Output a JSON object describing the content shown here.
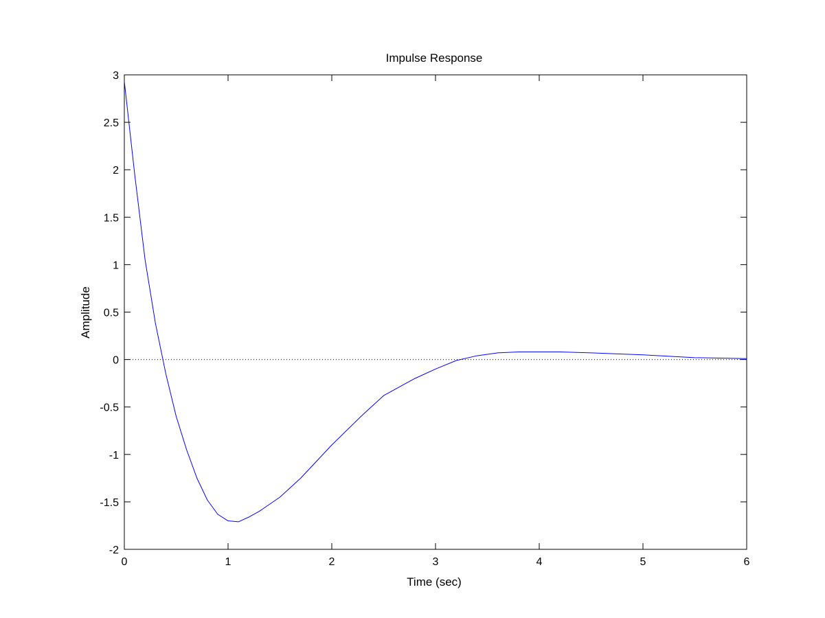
{
  "chart_data": {
    "type": "line",
    "title": "Impulse Response",
    "xlabel": "Time (sec)",
    "ylabel": "Amplitude",
    "xlim": [
      0,
      6
    ],
    "ylim": [
      -2,
      3
    ],
    "xticks": [
      0,
      1,
      2,
      3,
      4,
      5,
      6
    ],
    "yticks": [
      -2,
      -1.5,
      -1,
      -0.5,
      0,
      0.5,
      1,
      1.5,
      2,
      2.5,
      3
    ],
    "xtick_labels": [
      "0",
      "1",
      "2",
      "3",
      "4",
      "5",
      "6"
    ],
    "ytick_labels": [
      "-2",
      "-1.5",
      "-1",
      "-0.5",
      "0",
      "0.5",
      "1",
      "1.5",
      "2",
      "2.5",
      "3"
    ],
    "grid": false,
    "reference_line": {
      "y": 0,
      "style": "dotted"
    },
    "series": [
      {
        "color": "#0000ff",
        "x": [
          0,
          0.1,
          0.2,
          0.3,
          0.4,
          0.5,
          0.6,
          0.7,
          0.8,
          0.9,
          1.0,
          1.1,
          1.2,
          1.3,
          1.5,
          1.7,
          2.0,
          2.3,
          2.5,
          2.8,
          3.0,
          3.2,
          3.4,
          3.6,
          3.8,
          4.0,
          4.2,
          4.5,
          5.0,
          5.5,
          6.0
        ],
        "y": [
          2.93,
          1.95,
          1.05,
          0.38,
          -0.15,
          -0.6,
          -0.95,
          -1.25,
          -1.48,
          -1.63,
          -1.7,
          -1.71,
          -1.66,
          -1.6,
          -1.45,
          -1.25,
          -0.9,
          -0.58,
          -0.38,
          -0.2,
          -0.1,
          -0.01,
          0.04,
          0.07,
          0.08,
          0.08,
          0.08,
          0.07,
          0.05,
          0.02,
          0.01
        ]
      }
    ]
  }
}
